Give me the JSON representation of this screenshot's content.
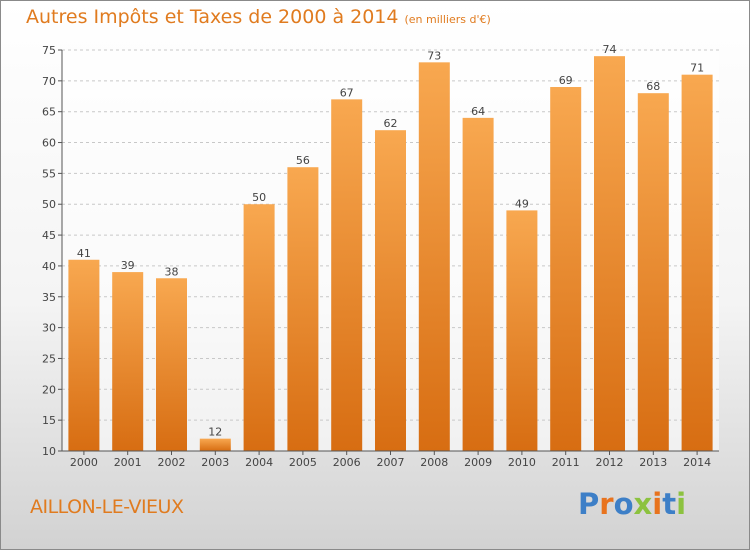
{
  "chart_data": {
    "type": "bar",
    "title": "Autres Impôts et Taxes de 2000 à 2014",
    "unit_note": "(en milliers d'€)",
    "categories": [
      "2000",
      "2001",
      "2002",
      "2003",
      "2004",
      "2005",
      "2006",
      "2007",
      "2008",
      "2009",
      "2010",
      "2011",
      "2012",
      "2013",
      "2014"
    ],
    "values": [
      41,
      39,
      38,
      12,
      50,
      56,
      67,
      62,
      73,
      64,
      49,
      69,
      74,
      68,
      71
    ],
    "ylim": [
      10,
      75
    ],
    "yticks": [
      10,
      15,
      20,
      25,
      30,
      35,
      40,
      45,
      50,
      55,
      60,
      65,
      70,
      75
    ],
    "grid": "horizontal-dashed",
    "colors": {
      "bar_light": "#f8a850",
      "bar_dark": "#d76d12",
      "text_accent": "#e07b1f",
      "grid": "#c8c8c8"
    }
  },
  "location": "AILLON-LE-VIEUX",
  "logo": {
    "text": "Proxiti",
    "letters": [
      {
        "ch": "P",
        "color": "#3d7fc7"
      },
      {
        "ch": "r",
        "color": "#e8731e"
      },
      {
        "ch": "o",
        "color": "#3d7fc7"
      },
      {
        "ch": "x",
        "color": "#8cc23f"
      },
      {
        "ch": "i",
        "color": "#e8731e"
      },
      {
        "ch": "t",
        "color": "#3d7fc7"
      },
      {
        "ch": "i",
        "color": "#8cc23f"
      }
    ]
  }
}
